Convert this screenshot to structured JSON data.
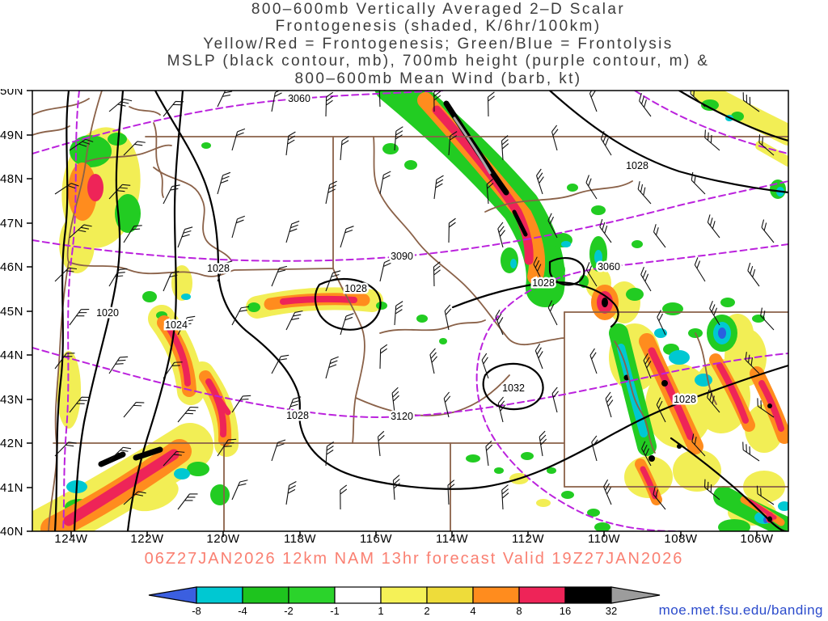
{
  "title": {
    "lines": [
      "800–600mb Vertically Averaged 2–D Scalar",
      "Frontogenesis (shaded, K/6hr/100km)",
      "Yellow/Red = Frontogenesis;  Green/Blue = Frontolysis",
      "MSLP (black contour, mb), 700mb height (purple contour, m) &",
      "800–600mb Mean Wind (barb, kt)"
    ]
  },
  "map": {
    "lat_labels": [
      "50N",
      "49N",
      "48N",
      "47N",
      "46N",
      "45N",
      "44N",
      "43N",
      "42N",
      "41N",
      "40N"
    ],
    "lon_labels": [
      "124W",
      "122W",
      "120W",
      "118W",
      "116W",
      "114W",
      "112W",
      "110W",
      "108W",
      "106W"
    ],
    "mslp_labels": [
      "1020",
      "1024",
      "1028",
      "1028",
      "1028",
      "1032",
      "1028",
      "1028",
      "1028"
    ],
    "height_labels": [
      "3060",
      "3090",
      "3120",
      "3060"
    ]
  },
  "caption": "06Z27JAN2026 12km NAM 13hr forecast Valid 19Z27JAN2026",
  "colorbar": {
    "tick_labels": [
      "-8",
      "-4",
      "-2",
      "-1",
      "1",
      "2",
      "4",
      "8",
      "16",
      "32"
    ],
    "colors": [
      "#00c8d2",
      "#1ec41e",
      "#2bd32b",
      "#ffffff",
      "#f5f157",
      "#eedc3a",
      "#ff8c1e",
      "#ee2458",
      "#000000"
    ],
    "arrow_left_color": "#3b5fe0",
    "arrow_right_color": "#9c9c9c"
  },
  "credit": "moe.met.fsu.edu/banding",
  "chart_data": {
    "type": "heatmap",
    "title": "800-600mb Vertically Averaged 2-D Scalar Frontogenesis (shaded, K/6hr/100km)",
    "overlays": [
      "MSLP (black contour, mb)",
      "700mb height (purple contour, m)",
      "800-600mb mean wind (barb, kt)"
    ],
    "colorbar_levels": [
      -8,
      -4,
      -2,
      -1,
      1,
      2,
      4,
      8,
      16,
      32
    ],
    "colorbar_colors": [
      "#3b5fe0",
      "#00c8d2",
      "#1ec41e",
      "#2bd32b",
      "#ffffff",
      "#f5f157",
      "#eedc3a",
      "#ff8c1e",
      "#ee2458",
      "#000000",
      "#9c9c9c"
    ],
    "x_axis": {
      "label": "longitude",
      "ticks": [
        "124W",
        "122W",
        "120W",
        "118W",
        "116W",
        "114W",
        "112W",
        "110W",
        "108W",
        "106W"
      ]
    },
    "y_axis": {
      "label": "latitude",
      "ticks": [
        "50N",
        "49N",
        "48N",
        "47N",
        "46N",
        "45N",
        "44N",
        "43N",
        "42N",
        "41N",
        "40N"
      ]
    },
    "mslp_contour_labels_mb": [
      1020,
      1024,
      1028,
      1032
    ],
    "height_700mb_contour_labels_m": [
      3060,
      3090,
      3120
    ],
    "model_run": "06Z27JAN2026",
    "model": "12km NAM",
    "forecast_hour": 13,
    "valid_time": "19Z27JAN2026"
  }
}
